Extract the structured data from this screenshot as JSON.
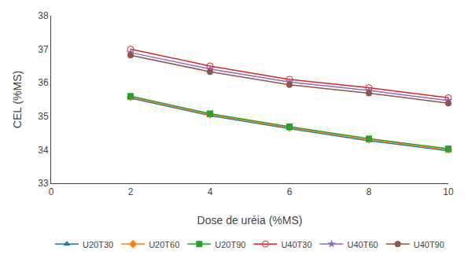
{
  "chart_data": {
    "type": "line",
    "x": [
      2,
      4,
      6,
      8,
      10
    ],
    "series": [
      {
        "name": "U20T30",
        "values": [
          35.54,
          35.02,
          34.63,
          34.27,
          33.97
        ],
        "marker": "triangle-up"
      },
      {
        "name": "U20T60",
        "values": [
          35.57,
          35.05,
          34.66,
          34.3,
          34.0
        ],
        "marker": "diamond"
      },
      {
        "name": "U20T90",
        "values": [
          35.6,
          35.08,
          34.69,
          34.33,
          34.03
        ],
        "marker": "square"
      },
      {
        "name": "U40T30",
        "values": [
          37.0,
          36.5,
          36.1,
          35.85,
          35.55
        ],
        "marker": "circle-open"
      },
      {
        "name": "U40T60",
        "values": [
          36.9,
          36.41,
          36.02,
          35.77,
          35.47
        ],
        "marker": "star"
      },
      {
        "name": "U40T90",
        "values": [
          36.82,
          36.33,
          35.94,
          35.69,
          35.39
        ],
        "marker": "circle"
      }
    ],
    "xlabel": "Dose de uréia (%MS)",
    "ylabel": "CEL (%MS)",
    "xlim": [
      0,
      10
    ],
    "ylim": [
      33,
      38
    ],
    "xticks": [
      0,
      2,
      4,
      6,
      8,
      10
    ],
    "yticks": [
      33,
      34,
      35,
      36,
      37,
      38
    ],
    "grid": false,
    "legend": "bottom"
  }
}
